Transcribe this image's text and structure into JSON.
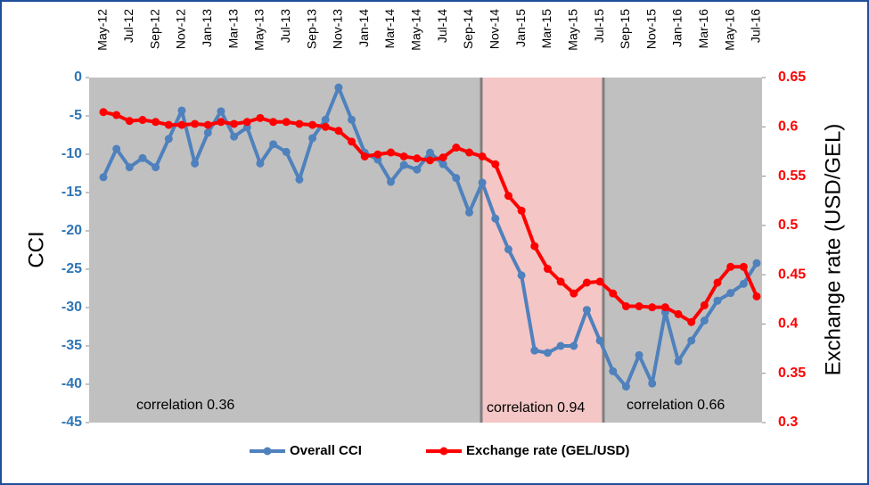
{
  "chart_data": {
    "type": "line",
    "categories": [
      "May-12",
      null,
      "Jul-12",
      null,
      "Sep-12",
      null,
      "Nov-12",
      null,
      "Jan-13",
      null,
      "Mar-13",
      null,
      "May-13",
      null,
      "Jul-13",
      null,
      "Sep-13",
      null,
      "Nov-13",
      null,
      "Jan-14",
      null,
      "Mar-14",
      null,
      "May-14",
      null,
      "Jul-14",
      null,
      "Sep-14",
      null,
      "Nov-14",
      null,
      "Jan-15",
      null,
      "Mar-15",
      null,
      "May-15",
      null,
      "Jul-15",
      null,
      "Sep-15",
      null,
      "Nov-15",
      null,
      "Jan-16",
      null,
      "Mar-16",
      null,
      "May-16",
      null,
      "Jul-16"
    ],
    "series": [
      {
        "name": "Overall CCI",
        "color": "#4f81bd",
        "axis": "y",
        "values": [
          -13.0,
          -9.3,
          -11.7,
          -10.5,
          -11.7,
          -8.0,
          -4.3,
          -11.2,
          -7.2,
          -4.4,
          -7.7,
          -6.5,
          -11.2,
          -8.7,
          -9.7,
          -13.3,
          -7.9,
          -5.5,
          -1.3,
          -5.5,
          -9.8,
          -10.7,
          -13.6,
          -11.4,
          -12.0,
          -9.8,
          -11.3,
          -13.1,
          -17.6,
          -13.7,
          -18.4,
          -22.4,
          -25.8,
          -35.6,
          -35.9,
          -35.0,
          -35.0,
          -30.3,
          -34.3,
          -38.3,
          -40.3,
          -36.2,
          -39.9,
          -30.6,
          -37.0,
          -34.3,
          -31.7,
          -29.1,
          -28.1,
          -26.9,
          -24.2
        ]
      },
      {
        "name": "Exchange rate (GEL/USD)",
        "color": "#ff0000",
        "axis": "y2",
        "values": [
          0.615,
          0.612,
          0.606,
          0.607,
          0.605,
          0.602,
          0.602,
          0.603,
          0.602,
          0.605,
          0.603,
          0.605,
          0.609,
          0.605,
          0.605,
          0.603,
          0.602,
          0.6,
          0.596,
          0.585,
          0.57,
          0.572,
          0.574,
          0.57,
          0.568,
          0.566,
          0.569,
          0.579,
          0.574,
          0.57,
          0.562,
          0.53,
          0.515,
          0.479,
          0.456,
          0.443,
          0.431,
          0.442,
          0.443,
          0.431,
          0.418,
          0.418,
          0.417,
          0.417,
          0.41,
          0.402,
          0.419,
          0.442,
          0.458,
          0.458,
          0.428
        ]
      }
    ],
    "ylabel": "CCI",
    "y2label": "Exchange rate (USD/GEL)",
    "ylim": [
      -45,
      0
    ],
    "yticks": [
      0,
      -5,
      -10,
      -15,
      -20,
      -25,
      -30,
      -35,
      -40,
      -45
    ],
    "y2lim": [
      0.3,
      0.65
    ],
    "y2ticks": [
      0.3,
      0.35,
      0.4,
      0.45,
      0.5,
      0.55,
      0.6,
      0.65
    ],
    "annotations": [
      "correlation 0.36",
      "correlation 0.94",
      "correlation 0.66"
    ],
    "legend": "bottom"
  }
}
